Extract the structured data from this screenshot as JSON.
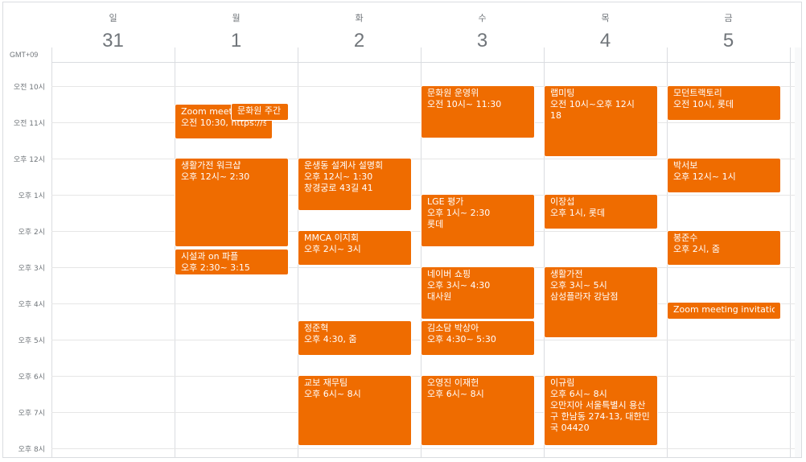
{
  "calendar": {
    "timezone": "GMT+09",
    "days": [
      {
        "dow": "일",
        "date": "31"
      },
      {
        "dow": "월",
        "date": "1"
      },
      {
        "dow": "화",
        "date": "2"
      },
      {
        "dow": "수",
        "date": "3"
      },
      {
        "dow": "목",
        "date": "4"
      },
      {
        "dow": "금",
        "date": "5"
      }
    ],
    "times": [
      "오전 10시",
      "오전 11시",
      "오후 12시",
      "오후 1시",
      "오후 2시",
      "오후 3시",
      "오후 4시",
      "오후 5시",
      "오후 6시",
      "오후 7시",
      "오후 8시"
    ],
    "event_color": "#ef6c00"
  },
  "events": {
    "mon_zoom": {
      "title": "Zoom meeti",
      "line2": "오전 10:30, https://snu"
    },
    "mon_munhwa": {
      "title": "문화원 주간 회"
    },
    "mon_saenghwal": {
      "title": "생활가전 워크샵",
      "line2": "오후 12시~ 2:30"
    },
    "mon_siseol": {
      "title": "시설과 on 파플",
      "line2": "오후 2:30~ 3:15"
    },
    "tue_unsaeng": {
      "title": "운생동 설계사 설명회",
      "line2": "오후 12시~ 1:30",
      "line3": "창경궁로 43길 41"
    },
    "tue_mmca": {
      "title": "MMCA 이지회",
      "line2": "오후 2시~ 3시"
    },
    "tue_jeong": {
      "title": "정준혁",
      "line2": "오후 4:30, 줌"
    },
    "tue_kyobo": {
      "title": "교보 재무팀",
      "line2": "오후 6시~ 8시"
    },
    "wed_munhwa": {
      "title": "문화원 운영위",
      "line2": "오전 10시~ 11:30"
    },
    "wed_lge": {
      "title": "LGE 평가",
      "line2": "오후 1시~ 2:30",
      "line3": "롯데"
    },
    "wed_naver": {
      "title": "네이버 쇼핑",
      "line2": "오후 3시~ 4:30",
      "line3": "대사원"
    },
    "wed_kim": {
      "title": "김소담 박상아",
      "line2": "오후 4:30~ 5:30"
    },
    "wed_oh": {
      "title": "오영진 이재헌",
      "line2": "오후 6시~ 8시"
    },
    "thu_lab": {
      "title": "랩미팅",
      "line2": "오전 10시~오후 12시",
      "line3": "18"
    },
    "thu_lee": {
      "title": "이장섭",
      "line2": "오후 1시, 롯데"
    },
    "thu_saenghwal": {
      "title": "생활가전",
      "line2": "오후 3시~ 5시",
      "line3": "삼성플라자 강남점"
    },
    "thu_igyurim": {
      "title": "이규림",
      "line2": "오후 6시~ 8시",
      "line3": "오만지아 서울특별시 용산구 한남동 274-13, 대한민국 04420"
    },
    "fri_modern": {
      "title": "모던트랙토리",
      "line2": "오전 10시, 롯데"
    },
    "fri_park": {
      "title": "박서보",
      "line2": "오후 12시~ 1시"
    },
    "fri_bong": {
      "title": "봉준수",
      "line2": "오후 2시, 줌"
    },
    "fri_zoom": {
      "title": "Zoom meeting invitation - 오"
    }
  }
}
